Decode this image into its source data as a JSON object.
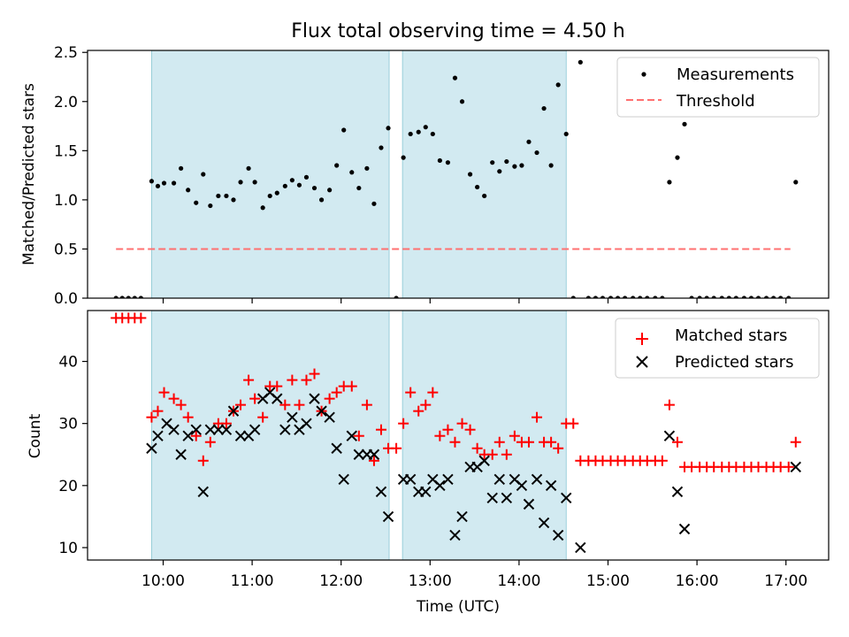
{
  "chart_data": {
    "type": "scatter",
    "title": "Flux total observing time = 4.50 h",
    "xlabel": "Time (UTC)",
    "xlim": [
      9.15,
      17.48
    ],
    "xticks": [
      10,
      11,
      12,
      13,
      14,
      15,
      16,
      17
    ],
    "xtick_labels": [
      "10:00",
      "11:00",
      "12:00",
      "13:00",
      "14:00",
      "15:00",
      "16:00",
      "17:00"
    ],
    "shaded_intervals": [
      [
        9.87,
        12.54
      ],
      [
        12.69,
        14.53
      ]
    ],
    "shade_color": "#add8e6",
    "panels": [
      {
        "ylabel": "Matched/Predicted stars",
        "ylim": [
          0,
          2.52
        ],
        "yticks": [
          0.0,
          0.5,
          1.0,
          1.5,
          2.0,
          2.5
        ],
        "ytick_labels": [
          "0.0",
          "0.5",
          "1.0",
          "1.5",
          "2.0",
          "2.5"
        ],
        "legend_position": "top-right",
        "threshold": {
          "name": "Threshold",
          "value": 0.5,
          "x_range": [
            9.47,
            17.05
          ],
          "color": "#ff7070"
        },
        "series": [
          {
            "name": "Measurements",
            "marker": "dot",
            "color": "#000000",
            "x": [
              9.47,
              9.54,
              9.61,
              9.68,
              9.75,
              9.87,
              9.94,
              10.01,
              10.12,
              10.2,
              10.28,
              10.37,
              10.45,
              10.53,
              10.62,
              10.71,
              10.79,
              10.87,
              10.96,
              11.03,
              11.12,
              11.2,
              11.28,
              11.37,
              11.45,
              11.53,
              11.61,
              11.7,
              11.78,
              11.87,
              11.95,
              12.03,
              12.12,
              12.2,
              12.29,
              12.37,
              12.45,
              12.53,
              12.62,
              12.7,
              12.78,
              12.87,
              12.95,
              13.03,
              13.11,
              13.2,
              13.28,
              13.36,
              13.45,
              13.53,
              13.61,
              13.7,
              13.78,
              13.86,
              13.95,
              14.03,
              14.11,
              14.2,
              14.28,
              14.36,
              14.44,
              14.53,
              14.61,
              14.69,
              14.78,
              14.86,
              14.94,
              15.03,
              15.11,
              15.19,
              15.28,
              15.36,
              15.44,
              15.53,
              15.61,
              15.69,
              15.78,
              15.86,
              15.94,
              16.03,
              16.11,
              16.19,
              16.28,
              16.36,
              16.44,
              16.53,
              16.61,
              16.69,
              16.78,
              16.86,
              16.94,
              17.03,
              17.11
            ],
            "y": [
              0,
              0,
              0,
              0,
              0,
              1.19,
              1.14,
              1.17,
              1.17,
              1.32,
              1.1,
              0.97,
              1.26,
              0.94,
              1.04,
              1.04,
              1.0,
              1.18,
              1.32,
              1.18,
              0.92,
              1.04,
              1.07,
              1.14,
              1.2,
              1.15,
              1.23,
              1.12,
              1.0,
              1.1,
              1.35,
              1.71,
              1.28,
              1.12,
              1.32,
              0.96,
              1.53,
              1.73,
              0,
              1.43,
              1.67,
              1.69,
              1.74,
              1.67,
              1.4,
              1.38,
              2.24,
              2.0,
              1.26,
              1.13,
              1.04,
              1.38,
              1.29,
              1.39,
              1.34,
              1.35,
              1.59,
              1.48,
              1.93,
              1.35,
              2.17,
              1.67,
              0,
              2.4,
              0,
              0,
              0,
              0,
              0,
              0,
              0,
              0,
              0,
              0,
              0,
              1.18,
              1.43,
              1.77,
              0,
              0,
              0,
              0,
              0,
              0,
              0,
              0,
              0,
              0,
              0,
              0,
              0,
              0,
              1.18
            ]
          }
        ]
      },
      {
        "ylabel": "Count",
        "ylim": [
          8,
          48.2
        ],
        "yticks": [
          10,
          20,
          30,
          40
        ],
        "ytick_labels": [
          "10",
          "20",
          "30",
          "40"
        ],
        "legend_position": "top-right",
        "series": [
          {
            "name": "Matched stars",
            "marker": "plus",
            "color": "#ff0000",
            "x": [
              9.47,
              9.54,
              9.61,
              9.68,
              9.75,
              9.87,
              9.94,
              10.01,
              10.12,
              10.2,
              10.28,
              10.37,
              10.45,
              10.53,
              10.62,
              10.71,
              10.79,
              10.87,
              10.96,
              11.03,
              11.12,
              11.2,
              11.28,
              11.37,
              11.45,
              11.53,
              11.61,
              11.7,
              11.78,
              11.87,
              11.95,
              12.03,
              12.12,
              12.2,
              12.29,
              12.37,
              12.45,
              12.53,
              12.62,
              12.7,
              12.78,
              12.87,
              12.95,
              13.03,
              13.11,
              13.2,
              13.28,
              13.36,
              13.45,
              13.53,
              13.61,
              13.7,
              13.78,
              13.86,
              13.95,
              14.03,
              14.11,
              14.2,
              14.28,
              14.36,
              14.44,
              14.53,
              14.61,
              14.69,
              14.78,
              14.86,
              14.94,
              15.03,
              15.11,
              15.19,
              15.28,
              15.36,
              15.44,
              15.53,
              15.61,
              15.69,
              15.78,
              15.86,
              15.94,
              16.03,
              16.11,
              16.19,
              16.28,
              16.36,
              16.44,
              16.53,
              16.61,
              16.69,
              16.78,
              16.86,
              16.94,
              17.03,
              17.11
            ],
            "y": [
              47,
              47,
              47,
              47,
              47,
              31,
              32,
              35,
              34,
              33,
              31,
              28,
              24,
              27,
              30,
              30,
              32,
              33,
              37,
              34,
              31,
              36,
              36,
              33,
              37,
              33,
              37,
              38,
              32,
              34,
              35,
              36,
              36,
              28,
              33,
              24,
              29,
              26,
              26,
              30,
              35,
              32,
              33,
              35,
              28,
              29,
              27,
              30,
              29,
              26,
              25,
              25,
              27,
              25,
              28,
              27,
              27,
              31,
              27,
              27,
              26,
              30,
              30,
              24,
              24,
              24,
              24,
              24,
              24,
              24,
              24,
              24,
              24,
              24,
              24,
              33,
              27,
              23,
              23,
              23,
              23,
              23,
              23,
              23,
              23,
              23,
              23,
              23,
              23,
              23,
              23,
              23,
              27
            ]
          },
          {
            "name": "Predicted stars",
            "marker": "x",
            "color": "#000000",
            "x": [
              9.87,
              9.94,
              10.04,
              10.12,
              10.2,
              10.28,
              10.37,
              10.45,
              10.53,
              10.62,
              10.71,
              10.79,
              10.87,
              10.96,
              11.03,
              11.12,
              11.2,
              11.28,
              11.37,
              11.45,
              11.53,
              11.61,
              11.7,
              11.78,
              11.87,
              11.95,
              12.03,
              12.12,
              12.2,
              12.29,
              12.37,
              12.45,
              12.53,
              12.7,
              12.78,
              12.87,
              12.95,
              13.03,
              13.11,
              13.2,
              13.28,
              13.36,
              13.45,
              13.53,
              13.61,
              13.7,
              13.78,
              13.86,
              13.95,
              14.03,
              14.11,
              14.2,
              14.28,
              14.36,
              14.44,
              14.53,
              14.69,
              15.69,
              15.78,
              15.86,
              17.11
            ],
            "y": [
              26,
              28,
              30,
              29,
              25,
              28,
              29,
              19,
              29,
              29,
              29,
              32,
              28,
              28,
              29,
              34,
              35,
              34,
              29,
              31,
              29,
              30,
              34,
              32,
              31,
              26,
              21,
              28,
              25,
              25,
              25,
              19,
              15,
              21,
              21,
              19,
              19,
              21,
              20,
              21,
              12,
              15,
              23,
              23,
              24,
              18,
              21,
              18,
              21,
              20,
              17,
              21,
              14,
              20,
              12,
              18,
              10,
              28,
              19,
              13,
              23
            ]
          }
        ]
      }
    ]
  }
}
